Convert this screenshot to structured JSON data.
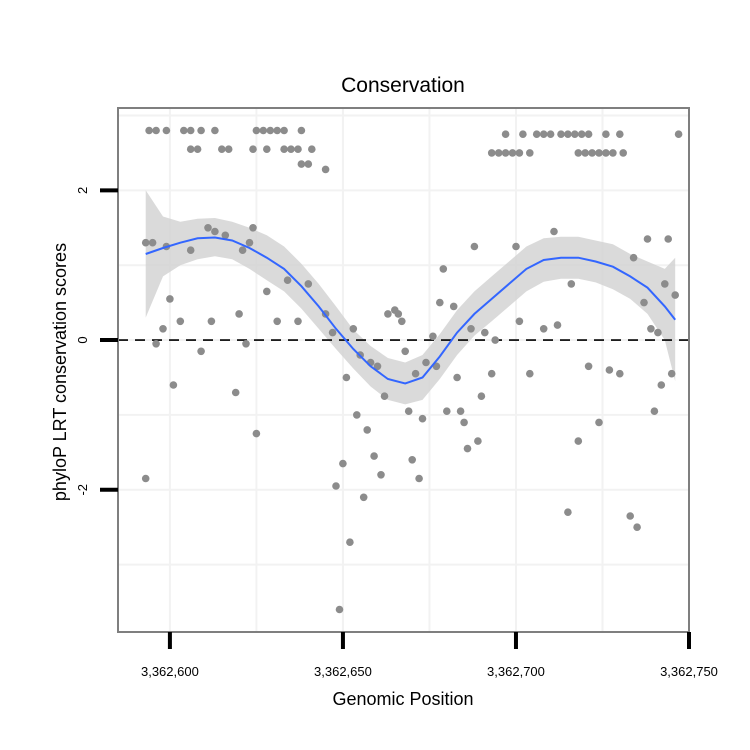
{
  "chart_data": {
    "type": "scatter",
    "title": "Conservation",
    "xlabel": "Genomic Position",
    "ylabel": "phyloP LRT conservation scores",
    "xlim": [
      3362585,
      3362750
    ],
    "ylim": [
      -3.9,
      3.1
    ],
    "x_ticks": [
      {
        "value": 3362600,
        "label": "3,362,600"
      },
      {
        "value": 3362650,
        "label": "3,362,650"
      },
      {
        "value": 3362700,
        "label": "3,362,700"
      },
      {
        "value": 3362750,
        "label": "3,362,750"
      }
    ],
    "y_ticks": [
      {
        "value": -2,
        "label": "-2"
      },
      {
        "value": 0,
        "label": "0"
      },
      {
        "value": 2,
        "label": "2"
      }
    ],
    "reference_line": {
      "y": 0,
      "style": "dashed"
    },
    "colors": {
      "points": "#8c8c8c",
      "smooth_line": "#3366ff",
      "ribbon": "#d3d3d3",
      "panel_border": "#7f7f7f",
      "grid": "#f2f2f2"
    },
    "points": [
      {
        "x": 3362594,
        "y": 2.8
      },
      {
        "x": 3362596,
        "y": 2.8
      },
      {
        "x": 3362599,
        "y": 2.8
      },
      {
        "x": 3362604,
        "y": 2.8
      },
      {
        "x": 3362606,
        "y": 2.8
      },
      {
        "x": 3362609,
        "y": 2.8
      },
      {
        "x": 3362613,
        "y": 2.8
      },
      {
        "x": 3362625,
        "y": 2.8
      },
      {
        "x": 3362627,
        "y": 2.8
      },
      {
        "x": 3362629,
        "y": 2.8
      },
      {
        "x": 3362631,
        "y": 2.8
      },
      {
        "x": 3362633,
        "y": 2.8
      },
      {
        "x": 3362638,
        "y": 2.8
      },
      {
        "x": 3362606,
        "y": 2.55
      },
      {
        "x": 3362608,
        "y": 2.55
      },
      {
        "x": 3362615,
        "y": 2.55
      },
      {
        "x": 3362617,
        "y": 2.55
      },
      {
        "x": 3362624,
        "y": 2.55
      },
      {
        "x": 3362628,
        "y": 2.55
      },
      {
        "x": 3362633,
        "y": 2.55
      },
      {
        "x": 3362635,
        "y": 2.55
      },
      {
        "x": 3362637,
        "y": 2.55
      },
      {
        "x": 3362641,
        "y": 2.55
      },
      {
        "x": 3362638,
        "y": 2.35
      },
      {
        "x": 3362640,
        "y": 2.35
      },
      {
        "x": 3362645,
        "y": 2.28
      },
      {
        "x": 3362697,
        "y": 2.75
      },
      {
        "x": 3362702,
        "y": 2.75
      },
      {
        "x": 3362706,
        "y": 2.75
      },
      {
        "x": 3362708,
        "y": 2.75
      },
      {
        "x": 3362710,
        "y": 2.75
      },
      {
        "x": 3362713,
        "y": 2.75
      },
      {
        "x": 3362715,
        "y": 2.75
      },
      {
        "x": 3362717,
        "y": 2.75
      },
      {
        "x": 3362719,
        "y": 2.75
      },
      {
        "x": 3362721,
        "y": 2.75
      },
      {
        "x": 3362726,
        "y": 2.75
      },
      {
        "x": 3362730,
        "y": 2.75
      },
      {
        "x": 3362747,
        "y": 2.75
      },
      {
        "x": 3362693,
        "y": 2.5
      },
      {
        "x": 3362695,
        "y": 2.5
      },
      {
        "x": 3362697,
        "y": 2.5
      },
      {
        "x": 3362699,
        "y": 2.5
      },
      {
        "x": 3362701,
        "y": 2.5
      },
      {
        "x": 3362704,
        "y": 2.5
      },
      {
        "x": 3362718,
        "y": 2.5
      },
      {
        "x": 3362720,
        "y": 2.5
      },
      {
        "x": 3362722,
        "y": 2.5
      },
      {
        "x": 3362724,
        "y": 2.5
      },
      {
        "x": 3362726,
        "y": 2.5
      },
      {
        "x": 3362728,
        "y": 2.5
      },
      {
        "x": 3362731,
        "y": 2.5
      },
      {
        "x": 3362593,
        "y": 1.3
      },
      {
        "x": 3362595,
        "y": 1.3
      },
      {
        "x": 3362593,
        "y": -1.85
      },
      {
        "x": 3362596,
        "y": -0.05
      },
      {
        "x": 3362598,
        "y": 0.15
      },
      {
        "x": 3362599,
        "y": 1.25
      },
      {
        "x": 3362600,
        "y": 0.55
      },
      {
        "x": 3362601,
        "y": -0.6
      },
      {
        "x": 3362603,
        "y": 0.25
      },
      {
        "x": 3362606,
        "y": 1.2
      },
      {
        "x": 3362609,
        "y": -0.15
      },
      {
        "x": 3362611,
        "y": 1.5
      },
      {
        "x": 3362612,
        "y": 0.25
      },
      {
        "x": 3362613,
        "y": 1.45
      },
      {
        "x": 3362616,
        "y": 1.4
      },
      {
        "x": 3362619,
        "y": -0.7
      },
      {
        "x": 3362620,
        "y": 0.35
      },
      {
        "x": 3362621,
        "y": 1.2
      },
      {
        "x": 3362622,
        "y": -0.05
      },
      {
        "x": 3362623,
        "y": 1.3
      },
      {
        "x": 3362624,
        "y": 1.5
      },
      {
        "x": 3362625,
        "y": -1.25
      },
      {
        "x": 3362628,
        "y": 0.65
      },
      {
        "x": 3362631,
        "y": 0.25
      },
      {
        "x": 3362634,
        "y": 0.8
      },
      {
        "x": 3362637,
        "y": 0.25
      },
      {
        "x": 3362640,
        "y": 0.75
      },
      {
        "x": 3362645,
        "y": 0.35
      },
      {
        "x": 3362647,
        "y": 0.1
      },
      {
        "x": 3362648,
        "y": -1.95
      },
      {
        "x": 3362649,
        "y": -3.6
      },
      {
        "x": 3362650,
        "y": -1.65
      },
      {
        "x": 3362651,
        "y": -0.5
      },
      {
        "x": 3362652,
        "y": -2.7
      },
      {
        "x": 3362653,
        "y": 0.15
      },
      {
        "x": 3362654,
        "y": -1.0
      },
      {
        "x": 3362655,
        "y": -0.2
      },
      {
        "x": 3362656,
        "y": -2.1
      },
      {
        "x": 3362657,
        "y": -1.2
      },
      {
        "x": 3362658,
        "y": -0.3
      },
      {
        "x": 3362659,
        "y": -1.55
      },
      {
        "x": 3362660,
        "y": -0.35
      },
      {
        "x": 3362661,
        "y": -1.8
      },
      {
        "x": 3362662,
        "y": -0.75
      },
      {
        "x": 3362663,
        "y": 0.35
      },
      {
        "x": 3362665,
        "y": 0.4
      },
      {
        "x": 3362666,
        "y": 0.35
      },
      {
        "x": 3362667,
        "y": 0.25
      },
      {
        "x": 3362668,
        "y": -0.15
      },
      {
        "x": 3362669,
        "y": -0.95
      },
      {
        "x": 3362670,
        "y": -1.6
      },
      {
        "x": 3362671,
        "y": -0.45
      },
      {
        "x": 3362672,
        "y": -1.85
      },
      {
        "x": 3362673,
        "y": -1.05
      },
      {
        "x": 3362674,
        "y": -0.3
      },
      {
        "x": 3362676,
        "y": 0.05
      },
      {
        "x": 3362677,
        "y": -0.35
      },
      {
        "x": 3362678,
        "y": 0.5
      },
      {
        "x": 3362679,
        "y": 0.95
      },
      {
        "x": 3362680,
        "y": -0.95
      },
      {
        "x": 3362682,
        "y": 0.45
      },
      {
        "x": 3362683,
        "y": -0.5
      },
      {
        "x": 3362684,
        "y": -0.95
      },
      {
        "x": 3362685,
        "y": -1.1
      },
      {
        "x": 3362686,
        "y": -1.45
      },
      {
        "x": 3362687,
        "y": 0.15
      },
      {
        "x": 3362688,
        "y": 1.25
      },
      {
        "x": 3362689,
        "y": -1.35
      },
      {
        "x": 3362690,
        "y": -0.75
      },
      {
        "x": 3362691,
        "y": 0.1
      },
      {
        "x": 3362693,
        "y": -0.45
      },
      {
        "x": 3362694,
        "y": 0.0
      },
      {
        "x": 3362700,
        "y": 1.25
      },
      {
        "x": 3362701,
        "y": 0.25
      },
      {
        "x": 3362704,
        "y": -0.45
      },
      {
        "x": 3362708,
        "y": 0.15
      },
      {
        "x": 3362711,
        "y": 1.45
      },
      {
        "x": 3362712,
        "y": 0.2
      },
      {
        "x": 3362715,
        "y": -2.3
      },
      {
        "x": 3362716,
        "y": 0.75
      },
      {
        "x": 3362718,
        "y": -1.35
      },
      {
        "x": 3362721,
        "y": -0.35
      },
      {
        "x": 3362724,
        "y": -1.1
      },
      {
        "x": 3362727,
        "y": -0.4
      },
      {
        "x": 3362730,
        "y": -0.45
      },
      {
        "x": 3362733,
        "y": -2.35
      },
      {
        "x": 3362734,
        "y": 1.1
      },
      {
        "x": 3362735,
        "y": -2.5
      },
      {
        "x": 3362737,
        "y": 0.5
      },
      {
        "x": 3362738,
        "y": 1.35
      },
      {
        "x": 3362739,
        "y": 0.15
      },
      {
        "x": 3362740,
        "y": -0.95
      },
      {
        "x": 3362741,
        "y": 0.1
      },
      {
        "x": 3362742,
        "y": -0.6
      },
      {
        "x": 3362743,
        "y": 0.75
      },
      {
        "x": 3362744,
        "y": 1.35
      },
      {
        "x": 3362745,
        "y": -0.45
      },
      {
        "x": 3362746,
        "y": 0.6
      }
    ],
    "smooth": {
      "x": [
        3362593,
        3362598,
        3362603,
        3362608,
        3362613,
        3362618,
        3362623,
        3362628,
        3362633,
        3362638,
        3362643,
        3362648,
        3362653,
        3362658,
        3362663,
        3362668,
        3362673,
        3362678,
        3362683,
        3362688,
        3362693,
        3362698,
        3362703,
        3362708,
        3362713,
        3362718,
        3362723,
        3362728,
        3362733,
        3362738,
        3362743,
        3362746
      ],
      "y": [
        1.15,
        1.23,
        1.3,
        1.36,
        1.37,
        1.33,
        1.23,
        1.1,
        0.95,
        0.72,
        0.45,
        0.15,
        -0.12,
        -0.35,
        -0.52,
        -0.58,
        -0.5,
        -0.22,
        0.1,
        0.35,
        0.55,
        0.75,
        0.95,
        1.07,
        1.1,
        1.1,
        1.05,
        0.98,
        0.85,
        0.7,
        0.45,
        0.27
      ],
      "lower": [
        0.3,
        0.85,
        1.0,
        1.08,
        1.12,
        1.08,
        0.95,
        0.8,
        0.65,
        0.42,
        0.15,
        -0.12,
        -0.38,
        -0.62,
        -0.8,
        -0.86,
        -0.8,
        -0.52,
        -0.2,
        0.06,
        0.25,
        0.45,
        0.65,
        0.78,
        0.82,
        0.82,
        0.77,
        0.68,
        0.55,
        0.35,
        0.0,
        -0.55
      ],
      "upper": [
        2.0,
        1.65,
        1.58,
        1.62,
        1.63,
        1.58,
        1.5,
        1.4,
        1.25,
        1.02,
        0.75,
        0.45,
        0.14,
        -0.08,
        -0.24,
        -0.3,
        -0.2,
        0.08,
        0.4,
        0.65,
        0.85,
        1.05,
        1.25,
        1.36,
        1.38,
        1.38,
        1.33,
        1.28,
        1.15,
        1.05,
        0.95,
        1.1
      ]
    }
  }
}
